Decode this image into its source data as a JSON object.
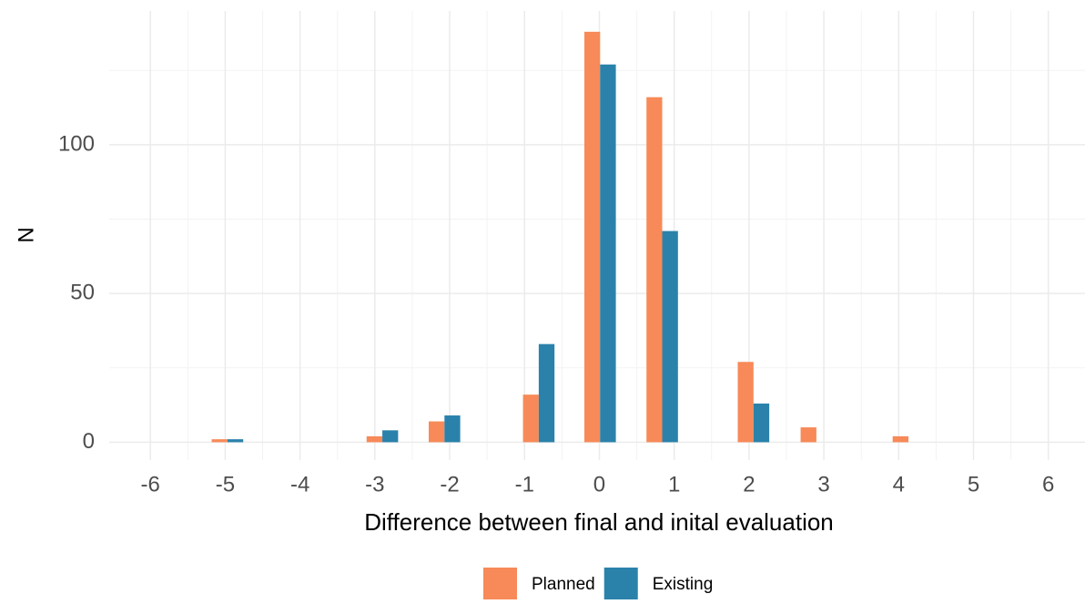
{
  "chart_data": {
    "type": "bar",
    "x_label": "Difference between final and inital evaluation",
    "y_label": "N",
    "x": [
      -4.97,
      -2.9,
      -2.07,
      -0.81,
      0.01,
      0.84,
      2.06,
      2.9,
      4.13
    ],
    "series": [
      {
        "name": "Planned",
        "color": "#f78a58",
        "values": [
          1,
          2,
          7,
          16,
          138,
          116,
          27,
          5,
          2
        ]
      },
      {
        "name": "Existing",
        "color": "#2a82ab",
        "values": [
          1,
          4,
          9,
          33,
          127,
          71,
          13,
          0,
          0
        ]
      }
    ],
    "xlim": [
      -6.55,
      6.49
    ],
    "xticks": [
      -6,
      -5,
      -4,
      -3,
      -2,
      -1,
      0,
      1,
      2,
      3,
      4,
      5,
      6
    ],
    "ylim": [
      -6,
      145
    ],
    "yticks": [
      0,
      50,
      100
    ],
    "grid": true,
    "legend": "bottom"
  }
}
